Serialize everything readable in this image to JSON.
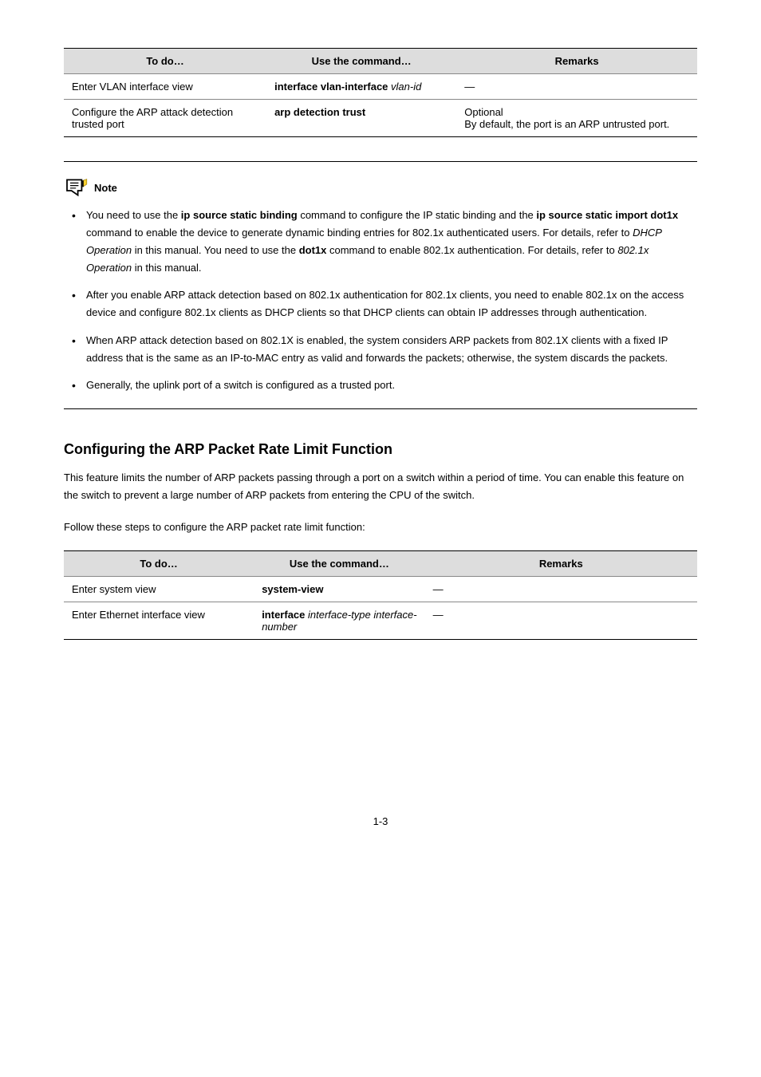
{
  "table1": {
    "columns": [
      "To do…",
      "Use the command…",
      "Remarks"
    ],
    "widths": [
      "32%",
      "30%",
      "38%"
    ],
    "rows": [
      {
        "c0": "Enter VLAN interface view",
        "c1_prefix": "interface vlan-interface",
        "c1_italic": " vlan-id",
        "c2": "—"
      },
      {
        "c0": "Configure the ARP attack detection trusted port",
        "c1_prefix": "arp detection trust",
        "c1_italic": "",
        "c2_line1": "Optional",
        "c2_line2": "By default, the port is an ARP untrusted port."
      }
    ]
  },
  "note": {
    "label": "Note",
    "items": [
      {
        "parts": [
          {
            "t": "You need to use the ",
            "i": false,
            "b": false
          },
          {
            "t": "ip source static binding",
            "i": false,
            "b": true
          },
          {
            "t": " command to configure the IP static binding and the ",
            "i": false,
            "b": false
          },
          {
            "t": "ip source static import dot1x",
            "i": false,
            "b": true
          },
          {
            "t": " command to enable the device to generate dynamic binding entries for 802.1x authenticated users. For details, refer to ",
            "i": false,
            "b": false
          },
          {
            "t": "DHCP Operation",
            "i": true,
            "b": false
          },
          {
            "t": " in this manual. You need to use the ",
            "i": false,
            "b": false
          },
          {
            "t": "dot1x",
            "i": false,
            "b": true
          },
          {
            "t": " command to enable 802.1x authentication. For details, refer to ",
            "i": false,
            "b": false
          },
          {
            "t": "802.1x Operation",
            "i": true,
            "b": false
          },
          {
            "t": " in this manual.",
            "i": false,
            "b": false
          }
        ]
      },
      {
        "parts": [
          {
            "t": "After you enable ARP attack detection based on 802.1x authentication for 802.1x clients, you need to enable 802.1x on the access device and configure 802.1x clients as DHCP clients so that DHCP clients can obtain IP addresses through authentication.",
            "i": false,
            "b": false
          }
        ]
      },
      {
        "parts": [
          {
            "t": "When ARP attack detection based on 802.1X is enabled, the system considers ARP packets from 802.1X clients with a fixed IP address that is the same as an IP-to-MAC entry as valid and forwards the packets; otherwise, the system discards the packets.",
            "i": false,
            "b": false
          }
        ]
      },
      {
        "parts": [
          {
            "t": "Generally, the uplink port of a switch is configured as a trusted port.",
            "i": false,
            "b": false
          }
        ]
      }
    ]
  },
  "section": {
    "heading": "Configuring the ARP Packet Rate Limit Function",
    "para": "This feature limits the number of ARP packets passing through a port on a switch within a period of time. You can enable this feature on the switch to prevent a large number of ARP packets from entering the CPU of the switch.",
    "para2": "Follow these steps to configure the ARP packet rate limit function:"
  },
  "table2": {
    "columns": [
      "To do…",
      "Use the command…",
      "Remarks"
    ],
    "widths": [
      "30%",
      "27%",
      "43%"
    ],
    "rows": [
      {
        "c0": "Enter system view",
        "c1_prefix": "system-view",
        "c1_italic": "",
        "c2": "—"
      },
      {
        "c0": "Enter Ethernet interface view",
        "c1_prefix": "interface",
        "c1_italic": " interface-type interface-number",
        "c2": "—"
      }
    ]
  },
  "pageNumber": "1-3"
}
